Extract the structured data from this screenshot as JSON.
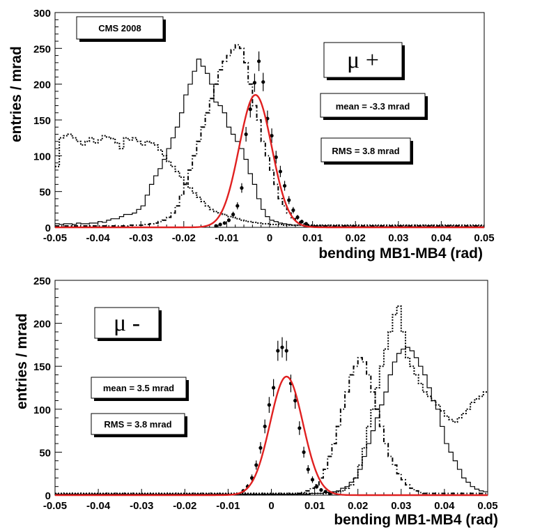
{
  "chart_data": [
    {
      "type": "histogram",
      "panel": "top",
      "xlabel": "bending MB1-MB4 (rad)",
      "ylabel": "entries / mrad",
      "xlim": [
        -0.05,
        0.05
      ],
      "ylim": [
        0,
        300
      ],
      "x_ticks": [
        "-0.05",
        "-0.04",
        "-0.03",
        "-0.02",
        "-0.01",
        "0",
        "0.01",
        "0.02",
        "0.03",
        "0.04",
        "0.05"
      ],
      "y_ticks": [
        "0",
        "50",
        "100",
        "150",
        "200",
        "250",
        "300"
      ],
      "tag": "CMS 2008",
      "charge_label": "μ +",
      "mean_label": "mean = -3.3 mrad",
      "rms_label": "RMS = 3.8 mrad",
      "fit": {
        "name": "gaussian fit",
        "color": "#e02020",
        "mean": -0.0033,
        "sigma": 0.0038,
        "amplitude": 185
      },
      "data_points": {
        "x": [
          -0.0125,
          -0.0115,
          -0.0105,
          -0.0095,
          -0.0085,
          -0.0075,
          -0.0065,
          -0.0055,
          -0.0045,
          -0.0035,
          -0.0025,
          -0.0015,
          -0.0005,
          0.0005,
          0.0015,
          0.0025,
          0.0035,
          0.0045,
          0.0055,
          0.0065,
          0.0075,
          0.0085
        ],
        "y": [
          2,
          4,
          6,
          10,
          18,
          30,
          55,
          130,
          165,
          202,
          232,
          203,
          152,
          128,
          98,
          78,
          58,
          38,
          24,
          14,
          8,
          5
        ]
      },
      "series": [
        {
          "name": "solid",
          "style": "solid",
          "x_start": -0.05,
          "bin_width": 0.001,
          "values": [
            5,
            4,
            5,
            5,
            4,
            6,
            5,
            5,
            6,
            6,
            8,
            7,
            10,
            12,
            12,
            15,
            18,
            18,
            20,
            25,
            30,
            45,
            60,
            72,
            82,
            95,
            110,
            125,
            140,
            160,
            185,
            200,
            218,
            235,
            225,
            215,
            200,
            175,
            170,
            160,
            140,
            130,
            120,
            110,
            95,
            75,
            60,
            40,
            25,
            15,
            10,
            8,
            6,
            5,
            4,
            3,
            3,
            3,
            2,
            2,
            2,
            2,
            1,
            1,
            1,
            1,
            1,
            1,
            1,
            1,
            1,
            1,
            1,
            1,
            1,
            1,
            1,
            1,
            1,
            1,
            1,
            1,
            1,
            1,
            1,
            1,
            1,
            1,
            1,
            1,
            1,
            1,
            1,
            1,
            1,
            1,
            1,
            1,
            1,
            1
          ]
        },
        {
          "name": "dash-dot",
          "style": "dashdot",
          "x_start": -0.05,
          "bin_width": 0.001,
          "values": [
            2,
            2,
            2,
            2,
            2,
            2,
            2,
            2,
            2,
            2,
            2,
            2,
            2,
            2,
            2,
            2,
            2,
            3,
            3,
            3,
            3,
            4,
            5,
            6,
            8,
            10,
            14,
            20,
            30,
            45,
            60,
            80,
            100,
            120,
            140,
            160,
            180,
            200,
            220,
            232,
            240,
            248,
            255,
            250,
            230,
            200,
            170,
            150,
            120,
            100,
            80,
            60,
            40,
            30,
            20,
            12,
            8,
            5,
            4,
            3,
            2,
            2,
            2,
            2,
            2,
            2,
            2,
            2,
            2,
            2,
            2,
            2,
            2,
            2,
            2,
            2,
            2,
            2,
            2,
            2,
            2,
            2,
            2,
            2,
            2,
            2,
            2,
            2,
            2,
            2,
            2,
            2,
            2,
            2,
            2,
            2,
            2,
            2,
            2,
            2
          ]
        },
        {
          "name": "dotted",
          "style": "dotted",
          "x_start": -0.05,
          "bin_width": 0.001,
          "values": [
            85,
            125,
            128,
            130,
            125,
            120,
            115,
            120,
            125,
            118,
            122,
            128,
            126,
            124,
            118,
            110,
            125,
            122,
            125,
            120,
            115,
            120,
            118,
            115,
            108,
            100,
            92,
            85,
            78,
            70,
            62,
            55,
            48,
            42,
            36,
            30,
            25,
            22,
            20,
            18,
            15,
            14,
            12,
            10,
            9,
            8,
            7,
            6,
            5,
            5,
            4,
            4,
            4,
            3,
            3,
            3,
            3,
            3,
            3,
            3,
            3,
            3,
            3,
            3,
            3,
            3,
            3,
            3,
            3,
            3,
            3,
            3,
            3,
            3,
            3,
            3,
            3,
            3,
            3,
            3,
            3,
            3,
            3,
            3,
            3,
            3,
            3,
            3,
            3,
            3,
            3,
            3,
            3,
            3,
            3,
            3,
            3,
            3,
            3,
            3
          ]
        }
      ]
    },
    {
      "type": "histogram",
      "panel": "bottom",
      "xlabel": "bending MB1-MB4 (rad)",
      "ylabel": "entries / mrad",
      "xlim": [
        -0.05,
        0.05
      ],
      "ylim": [
        0,
        250
      ],
      "x_ticks": [
        "-0.05",
        "-0.04",
        "-0.03",
        "-0.02",
        "-0.01",
        "0",
        "0.01",
        "0.02",
        "0.03",
        "0.04",
        "0.05"
      ],
      "y_ticks": [
        "0",
        "50",
        "100",
        "150",
        "200",
        "250"
      ],
      "charge_label": "μ -",
      "mean_label": "mean = 3.5 mrad",
      "rms_label": "RMS = 3.8 mrad",
      "fit": {
        "name": "gaussian fit",
        "color": "#e02020",
        "mean": 0.0035,
        "sigma": 0.0038,
        "amplitude": 138
      },
      "data_points": {
        "x": [
          -0.0065,
          -0.0055,
          -0.0045,
          -0.0035,
          -0.0025,
          -0.0015,
          -0.0005,
          0.0005,
          0.0015,
          0.0025,
          0.0035,
          0.0045,
          0.0055,
          0.0065,
          0.0075,
          0.0085,
          0.0095,
          0.0105,
          0.0115,
          0.0125,
          0.0135
        ],
        "y": [
          5,
          10,
          20,
          35,
          55,
          80,
          105,
          125,
          168,
          172,
          168,
          130,
          110,
          78,
          50,
          30,
          18,
          10,
          6,
          4,
          2
        ]
      },
      "series": [
        {
          "name": "solid",
          "style": "solid",
          "x_start": -0.05,
          "bin_width": 0.001,
          "values": [
            1,
            1,
            1,
            1,
            1,
            1,
            1,
            1,
            1,
            1,
            1,
            1,
            1,
            1,
            1,
            1,
            1,
            1,
            1,
            1,
            1,
            1,
            1,
            1,
            1,
            1,
            1,
            1,
            1,
            1,
            1,
            1,
            1,
            1,
            1,
            1,
            1,
            1,
            1,
            1,
            1,
            1,
            1,
            1,
            1,
            1,
            1,
            1,
            1,
            1,
            1,
            1,
            1,
            1,
            1,
            1,
            1,
            1,
            1,
            2,
            2,
            2,
            3,
            3,
            4,
            5,
            8,
            10,
            15,
            20,
            30,
            45,
            60,
            75,
            90,
            105,
            120,
            140,
            155,
            165,
            170,
            172,
            168,
            160,
            150,
            140,
            125,
            110,
            100,
            80,
            60,
            50,
            40,
            30,
            20,
            15,
            10,
            7,
            5,
            4
          ]
        },
        {
          "name": "dash-dot",
          "style": "dashdot",
          "x_start": -0.05,
          "bin_width": 0.001,
          "values": [
            1,
            1,
            1,
            1,
            1,
            1,
            1,
            1,
            1,
            1,
            1,
            1,
            1,
            1,
            1,
            1,
            1,
            1,
            1,
            1,
            1,
            1,
            1,
            1,
            1,
            1,
            1,
            1,
            1,
            1,
            1,
            1,
            1,
            1,
            1,
            1,
            1,
            1,
            1,
            1,
            1,
            1,
            1,
            1,
            1,
            1,
            1,
            1,
            1,
            1,
            1,
            1,
            1,
            1,
            1,
            1,
            2,
            3,
            5,
            8,
            12,
            20,
            30,
            45,
            60,
            80,
            100,
            120,
            140,
            150,
            160,
            155,
            140,
            120,
            100,
            80,
            60,
            45,
            35,
            25,
            18,
            12,
            8,
            5,
            3,
            2,
            2,
            2,
            2,
            2,
            2,
            2,
            2,
            2,
            2,
            2,
            2,
            2,
            2,
            2
          ]
        },
        {
          "name": "dotted",
          "style": "dotted",
          "x_start": -0.05,
          "bin_width": 0.001,
          "values": [
            2,
            2,
            2,
            2,
            2,
            2,
            2,
            2,
            2,
            2,
            2,
            2,
            2,
            2,
            2,
            2,
            2,
            2,
            2,
            2,
            2,
            2,
            2,
            2,
            2,
            2,
            2,
            2,
            2,
            2,
            2,
            2,
            2,
            2,
            2,
            2,
            2,
            2,
            2,
            2,
            2,
            2,
            2,
            2,
            2,
            2,
            2,
            2,
            2,
            2,
            2,
            2,
            2,
            2,
            2,
            2,
            2,
            2,
            2,
            2,
            2,
            2,
            2,
            3,
            3,
            4,
            5,
            8,
            12,
            20,
            35,
            55,
            80,
            100,
            125,
            150,
            170,
            190,
            210,
            220,
            190,
            160,
            150,
            140,
            130,
            120,
            115,
            110,
            105,
            98,
            92,
            88,
            85,
            90,
            95,
            100,
            108,
            112,
            115,
            120
          ]
        }
      ]
    }
  ]
}
